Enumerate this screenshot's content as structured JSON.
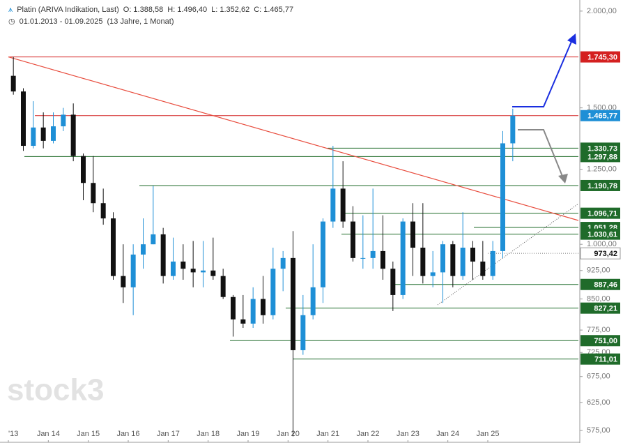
{
  "chart_data": {
    "type": "candlestick",
    "title": "Platin (ARIVA Indikation, Last)",
    "quote": [
      "O: 1.388,58",
      "H: 1.496,40",
      "L: 1.352,62",
      "C: 1.465,77"
    ],
    "range": "01.01.2013 - 01.09.2025",
    "span": "(13 Jahre, 1 Monat)",
    "watermark": "stock3",
    "xlabels": [
      "'13",
      "Jan 14",
      "Jan 15",
      "Jan 16",
      "Jan 17",
      "Jan 18",
      "Jan 19",
      "Jan 20",
      "Jan 21",
      "Jan 22",
      "Jan 23",
      "Jan 24",
      "Jan 25"
    ],
    "log": true,
    "ylim": [
      554,
      2067
    ],
    "yticks": [
      {
        "value": 575,
        "label": "575,00"
      },
      {
        "value": 625,
        "label": "625,00"
      },
      {
        "value": 675,
        "label": "675,00"
      },
      {
        "value": 725,
        "label": "725,00"
      },
      {
        "value": 775,
        "label": "775,00"
      },
      {
        "value": 850,
        "label": "850,00"
      },
      {
        "value": 925,
        "label": "925,00"
      },
      {
        "value": 1000,
        "label": "1.000,00"
      },
      {
        "value": 1250,
        "label": "1.250,00"
      },
      {
        "value": 1500,
        "label": "1.500,00"
      },
      {
        "value": 2000,
        "label": "2.000,00"
      }
    ],
    "up_color": "#1e8fd6",
    "down_color": "#111111",
    "ohlc": [
      [
        1650,
        1745,
        1560,
        1575
      ],
      [
        1575,
        1590,
        1320,
        1340
      ],
      [
        1340,
        1530,
        1330,
        1415
      ],
      [
        1415,
        1480,
        1330,
        1360
      ],
      [
        1360,
        1480,
        1350,
        1420
      ],
      [
        1420,
        1500,
        1400,
        1470
      ],
      [
        1470,
        1520,
        1280,
        1300
      ],
      [
        1300,
        1310,
        1140,
        1200
      ],
      [
        1200,
        1300,
        1100,
        1130
      ],
      [
        1130,
        1180,
        1060,
        1080
      ],
      [
        1080,
        1100,
        900,
        910
      ],
      [
        910,
        1000,
        840,
        880
      ],
      [
        880,
        1000,
        810,
        970
      ],
      [
        970,
        1080,
        930,
        1000
      ],
      [
        1000,
        1190,
        1000,
        1030
      ],
      [
        1030,
        1050,
        890,
        910
      ],
      [
        910,
        1020,
        900,
        950
      ],
      [
        950,
        1000,
        900,
        930
      ],
      [
        930,
        1010,
        880,
        920
      ],
      [
        920,
        1010,
        880,
        925
      ],
      [
        925,
        1020,
        900,
        910
      ],
      [
        910,
        930,
        850,
        855
      ],
      [
        855,
        860,
        760,
        800
      ],
      [
        800,
        860,
        780,
        790
      ],
      [
        790,
        880,
        780,
        850
      ],
      [
        850,
        910,
        790,
        810
      ],
      [
        810,
        990,
        800,
        930
      ],
      [
        930,
        980,
        870,
        960
      ],
      [
        960,
        1040,
        565,
        730
      ],
      [
        730,
        860,
        720,
        810
      ],
      [
        810,
        1000,
        800,
        880
      ],
      [
        880,
        1080,
        840,
        1070
      ],
      [
        1070,
        1340,
        1050,
        1180
      ],
      [
        1180,
        1280,
        1050,
        1070
      ],
      [
        1070,
        1120,
        950,
        960
      ],
      [
        960,
        1090,
        930,
        960
      ],
      [
        960,
        1180,
        930,
        980
      ],
      [
        980,
        1090,
        900,
        930
      ],
      [
        930,
        950,
        820,
        860
      ],
      [
        860,
        1080,
        850,
        1070
      ],
      [
        1070,
        1130,
        910,
        990
      ],
      [
        990,
        1130,
        890,
        910
      ],
      [
        910,
        980,
        880,
        920
      ],
      [
        920,
        1010,
        840,
        1000
      ],
      [
        1000,
        1010,
        880,
        910
      ],
      [
        910,
        1100,
        900,
        990
      ],
      [
        990,
        1010,
        900,
        950
      ],
      [
        950,
        1010,
        900,
        910
      ],
      [
        910,
        1010,
        900,
        980
      ],
      [
        980,
        1400,
        960,
        1350
      ],
      [
        1350,
        1496.4,
        1280,
        1465.77
      ]
    ],
    "levels": [
      {
        "value": 1745.3,
        "label": "1.745,30",
        "color": "#d42020"
      },
      {
        "value": 1465.77,
        "label": "1.465,77",
        "color": "#1e8fd6"
      },
      {
        "value": 1330.73,
        "label": "1.330,73",
        "color": "#1f6b2a"
      },
      {
        "value": 1297.88,
        "label": "1.297,88",
        "color": "#1f6b2a"
      },
      {
        "value": 1190.78,
        "label": "1.190,78",
        "color": "#1f6b2a"
      },
      {
        "value": 1096.71,
        "label": "1.096,71",
        "color": "#1f6b2a"
      },
      {
        "value": 1051.28,
        "label": "1.051,28",
        "color": "#1f6b2a"
      },
      {
        "value": 1030.61,
        "label": "1.030,61",
        "color": "#1f6b2a"
      },
      {
        "value": 973.42,
        "label": "973,42",
        "color": "#ffffff"
      },
      {
        "value": 887.46,
        "label": "887,46",
        "color": "#1f6b2a"
      },
      {
        "value": 827.21,
        "label": "827,21",
        "color": "#1f6b2a"
      },
      {
        "value": 751.0,
        "label": "751,00",
        "color": "#1f6b2a"
      },
      {
        "value": 711.01,
        "label": "711,01",
        "color": "#1f6b2a"
      }
    ]
  }
}
